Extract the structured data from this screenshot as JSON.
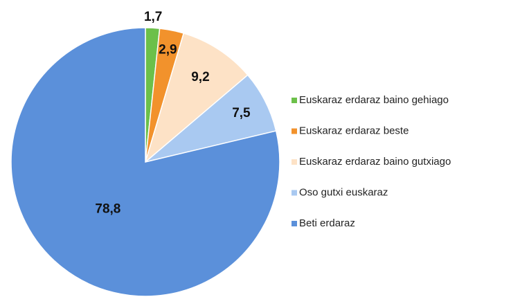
{
  "chart_data": {
    "type": "pie",
    "categories": [
      "Euskaraz erdaraz baino gehiago",
      "Euskaraz erdaraz beste",
      "Euskaraz erdaraz baino gutxiago",
      "Oso gutxi euskaraz",
      "Beti erdaraz"
    ],
    "values": [
      1.7,
      2.9,
      9.2,
      7.5,
      78.8
    ],
    "value_labels": [
      "1,7",
      "2,9",
      "9,2",
      "7,5",
      "78,8"
    ],
    "colors": [
      "#6cc04a",
      "#f2922c",
      "#fde2c6",
      "#a9c9f1",
      "#5b90da"
    ],
    "legend": "right"
  }
}
